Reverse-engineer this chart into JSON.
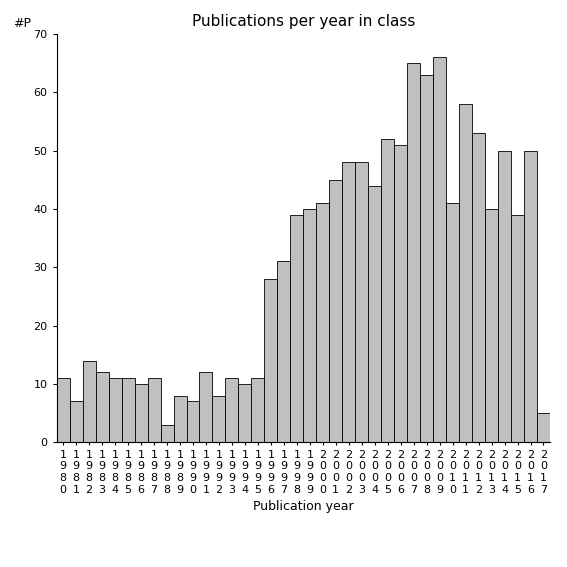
{
  "title": "Publications per year in class",
  "xlabel": "Publication year",
  "ylabel": "#P",
  "bar_color": "#c0c0c0",
  "edge_color": "#000000",
  "background_color": "#ffffff",
  "ylim": [
    0,
    70
  ],
  "yticks": [
    0,
    10,
    20,
    30,
    40,
    50,
    60,
    70
  ],
  "years": [
    1980,
    1981,
    1982,
    1983,
    1984,
    1985,
    1986,
    1987,
    1988,
    1989,
    1990,
    1991,
    1992,
    1993,
    1994,
    1995,
    1996,
    1997,
    1998,
    1999,
    2000,
    2001,
    2002,
    2003,
    2004,
    2005,
    2006,
    2007,
    2008,
    2009,
    2010,
    2011,
    2012,
    2013,
    2014,
    2015,
    2016,
    2017
  ],
  "values": [
    11,
    7,
    14,
    12,
    11,
    11,
    10,
    11,
    3,
    8,
    7,
    12,
    8,
    11,
    10,
    11,
    28,
    31,
    39,
    40,
    41,
    45,
    48,
    48,
    44,
    52,
    51,
    65,
    63,
    66,
    41,
    58,
    53,
    40,
    50,
    39,
    50,
    5
  ],
  "title_fontsize": 11,
  "axis_fontsize": 9,
  "tick_fontsize": 8
}
